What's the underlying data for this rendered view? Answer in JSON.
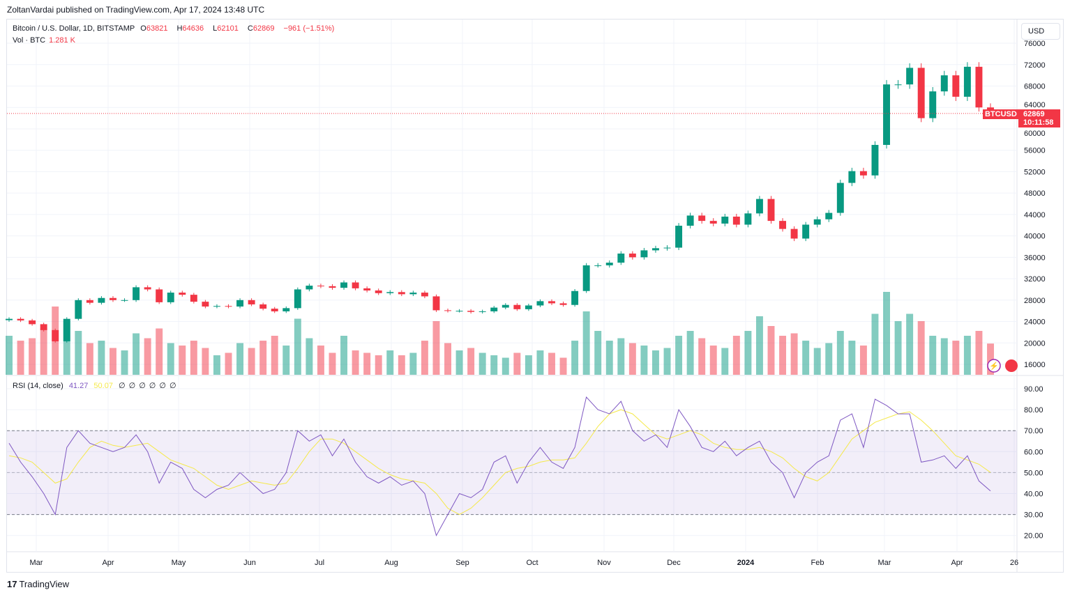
{
  "header": {
    "published": "ZoltanVardai published on TradingView.com, Apr 17, 2024 13:48 UTC"
  },
  "legend": {
    "symbol": "Bitcoin / U.S. Dollar, 1D, BITSTAMP",
    "o_label": "O",
    "o": "63821",
    "h_label": "H",
    "h": "64636",
    "l_label": "L",
    "l": "62101",
    "c_label": "C",
    "c": "62869",
    "change": "−961 (−1.51%)",
    "vol_label": "Vol · BTC",
    "vol": "1.281 K"
  },
  "rsi_legend": {
    "label": "RSI (14, close)",
    "rsi": "41.27",
    "ma": "50.07",
    "extras": [
      "∅",
      "∅",
      "∅",
      "∅",
      "∅",
      "∅"
    ]
  },
  "currency_button": "USD",
  "price_tag": {
    "symbol": "BTCUSD",
    "price": "62869",
    "countdown": "10:11:58"
  },
  "footer": {
    "brand": "TradingView",
    "brand_mark": "17"
  },
  "colors": {
    "up": "#089981",
    "down": "#f23645",
    "rsi": "#7e57c2",
    "rsi_ma": "#f5e94a",
    "band": "#7e57c2"
  },
  "chart_data": [
    {
      "type": "candlestick",
      "price_axis": {
        "ticks": [
          16000,
          20000,
          24000,
          28000,
          32000,
          36000,
          40000,
          44000,
          48000,
          52000,
          56000,
          60000,
          64000,
          68000,
          72000,
          76000
        ],
        "range": [
          14500,
          78000
        ]
      },
      "x_ticks": [
        "Mar",
        "Apr",
        "May",
        "Jun",
        "Jul",
        "Aug",
        "Sep",
        "Oct",
        "Nov",
        "Dec",
        "2024",
        "Feb",
        "Mar",
        "Apr",
        "26"
      ],
      "x_range": [
        "2023-02-17",
        "2024-04-26"
      ],
      "closes": [
        24500,
        24200,
        23500,
        22400,
        20300,
        24500,
        28000,
        27500,
        28400,
        28000,
        28000,
        30400,
        30000,
        27600,
        29400,
        29000,
        27700,
        26800,
        26900,
        26800,
        28000,
        27200,
        26400,
        25900,
        26500,
        30000,
        30700,
        30600,
        30300,
        31300,
        30200,
        29800,
        29300,
        29500,
        29100,
        29400,
        28700,
        26100,
        26000,
        26000,
        25800,
        25900,
        26600,
        27100,
        26300,
        27000,
        27800,
        27400,
        27100,
        29700,
        34500,
        34500,
        35000,
        36700,
        36000,
        37300,
        37700,
        37800,
        41900,
        43800,
        42800,
        42300,
        43600,
        42100,
        44200,
        46900,
        42800,
        41300,
        39500,
        42100,
        43100,
        44300,
        49900,
        52100,
        51300,
        57000,
        68300,
        68300,
        71400,
        62000,
        67000,
        70000,
        66000,
        71600,
        64000,
        62869
      ],
      "volume_k": [
        1.6,
        1.4,
        1.5,
        1.9,
        2.8,
        2.2,
        1.8,
        1.3,
        1.4,
        1.1,
        1.0,
        1.7,
        1.5,
        1.9,
        1.3,
        1.2,
        1.4,
        1.1,
        0.8,
        0.9,
        1.3,
        1.1,
        1.4,
        1.6,
        1.2,
        2.3,
        1.5,
        1.2,
        0.9,
        1.6,
        1.0,
        0.9,
        0.8,
        1.0,
        0.8,
        0.9,
        1.4,
        2.2,
        1.3,
        1.0,
        1.1,
        0.9,
        0.8,
        0.7,
        0.9,
        0.8,
        1.0,
        0.9,
        0.7,
        1.4,
        2.6,
        1.8,
        1.4,
        1.5,
        1.3,
        1.2,
        1.0,
        1.1,
        1.6,
        1.8,
        1.5,
        1.2,
        1.1,
        1.6,
        1.8,
        2.4,
        2.0,
        1.6,
        1.7,
        1.4,
        1.1,
        1.3,
        1.8,
        1.4,
        1.2,
        2.5,
        3.4,
        2.2,
        2.5,
        2.2,
        1.6,
        1.5,
        1.4,
        1.6,
        1.8,
        1.281
      ],
      "current_price": 62869
    },
    {
      "type": "line",
      "name": "RSI (14, close)",
      "yticks": [
        20,
        30,
        40,
        50,
        60,
        70,
        80,
        90
      ],
      "range": [
        15,
        95
      ],
      "bands": [
        30,
        50,
        70
      ],
      "rsi": [
        64,
        55,
        48,
        40,
        30,
        62,
        70,
        64,
        62,
        60,
        62,
        68,
        60,
        45,
        55,
        52,
        42,
        38,
        42,
        44,
        50,
        45,
        40,
        42,
        50,
        70,
        65,
        68,
        58,
        66,
        55,
        48,
        45,
        48,
        44,
        46,
        40,
        20,
        30,
        40,
        38,
        42,
        55,
        58,
        45,
        55,
        62,
        55,
        52,
        62,
        86,
        80,
        78,
        84,
        70,
        65,
        68,
        62,
        80,
        72,
        62,
        60,
        65,
        58,
        62,
        65,
        55,
        50,
        38,
        50,
        55,
        58,
        75,
        78,
        62,
        85,
        82,
        78,
        78,
        55,
        56,
        58,
        52,
        58,
        46,
        41.27
      ],
      "rsi_ma": [
        58,
        57,
        55,
        50,
        45,
        47,
        55,
        62,
        65,
        63,
        62,
        63,
        64,
        60,
        56,
        54,
        52,
        48,
        44,
        42,
        44,
        46,
        45,
        44,
        45,
        52,
        60,
        66,
        66,
        64,
        60,
        56,
        52,
        49,
        47,
        46,
        45,
        40,
        33,
        30,
        33,
        38,
        44,
        50,
        52,
        53,
        55,
        56,
        56,
        57,
        64,
        72,
        78,
        80,
        78,
        73,
        68,
        66,
        68,
        70,
        68,
        64,
        62,
        61,
        61,
        62,
        60,
        57,
        52,
        48,
        46,
        50,
        58,
        66,
        70,
        74,
        76,
        78,
        79,
        75,
        70,
        64,
        58,
        56,
        54,
        50.07
      ]
    }
  ]
}
